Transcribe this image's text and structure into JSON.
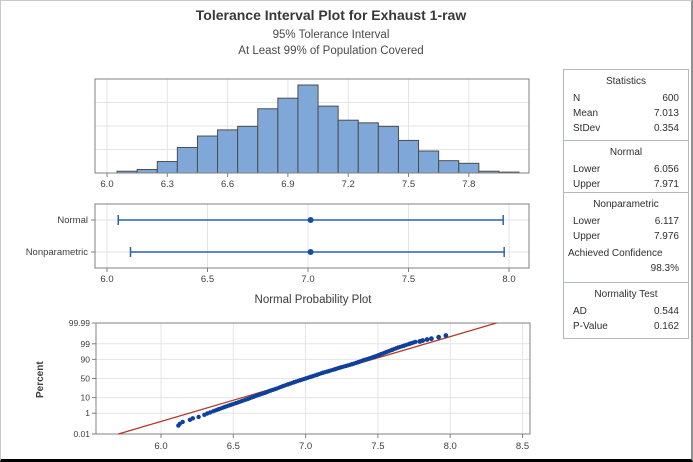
{
  "header": {
    "title": "Tolerance Interval Plot for Exhaust 1-raw",
    "subtitle1": "95% Tolerance Interval",
    "subtitle2": "At Least 99% of Population Covered"
  },
  "colors": {
    "bar_fill": "#7FA8D9",
    "bar_edge": "#4C4C4C",
    "interval_line": "#2B62AE",
    "interval_marker": "#1A4FA0",
    "point_fill": "#0F419B",
    "fit_line": "#AF3A2B",
    "gridline": "#E4E4E4",
    "plot_border": "#808080",
    "tick_text": "#3D3D3D"
  },
  "chart_data": [
    {
      "type": "bar",
      "name": "histogram",
      "bin_width": 0.1,
      "bin_centers": [
        6.1,
        6.2,
        6.3,
        6.4,
        6.5,
        6.6,
        6.7,
        6.8,
        6.9,
        7.0,
        7.1,
        7.2,
        7.3,
        7.4,
        7.5,
        7.6,
        7.7,
        7.8,
        7.9,
        8.0
      ],
      "rel_heights_pct_of_max": [
        2,
        4,
        13,
        29,
        42,
        49,
        53,
        73,
        85,
        100,
        76,
        60,
        57,
        53,
        37,
        25,
        14,
        11,
        2,
        1
      ],
      "x_ticks": [
        6.0,
        6.3,
        6.6,
        6.9,
        7.2,
        7.5,
        7.8
      ],
      "xlim": [
        5.94,
        8.1
      ],
      "grid": true,
      "ylabel": "",
      "xlabel": ""
    },
    {
      "type": "interval",
      "name": "tolerance-intervals",
      "x_ticks": [
        6.0,
        6.5,
        7.0,
        7.5,
        8.0
      ],
      "xlim": [
        5.94,
        8.1
      ],
      "rows": [
        {
          "label": "Normal",
          "lower": 6.056,
          "upper": 7.971,
          "center": 7.013
        },
        {
          "label": "Nonparametric",
          "lower": 6.117,
          "upper": 7.976,
          "center": 7.013
        }
      ]
    },
    {
      "type": "scatter",
      "name": "normal-probability-plot",
      "title": "Normal Probability Plot",
      "ylabel": "Percent",
      "yscale": "probit",
      "y_ticks": [
        0.01,
        1,
        10,
        50,
        90,
        99,
        99.99
      ],
      "x_ticks": [
        6.0,
        6.5,
        7.0,
        7.5,
        8.0,
        8.5
      ],
      "xlim": [
        5.55,
        8.55
      ],
      "fit_line": {
        "x": [
          5.705,
          8.32
        ],
        "percent": [
          0.01,
          99.99
        ]
      },
      "lower_tail_points": [
        [
          6.12,
          0.08
        ],
        [
          6.13,
          0.12
        ],
        [
          6.15,
          0.18
        ],
        [
          6.2,
          0.28
        ],
        [
          6.22,
          0.38
        ],
        [
          6.26,
          0.5
        ],
        [
          6.3,
          0.75
        ],
        [
          6.32,
          0.95
        ],
        [
          6.34,
          1.15
        ]
      ],
      "dense_points": [
        [
          6.36,
          1.4
        ],
        [
          6.4,
          2.0
        ],
        [
          6.44,
          2.8
        ],
        [
          6.48,
          3.8
        ],
        [
          6.52,
          5.0
        ],
        [
          6.56,
          6.6
        ],
        [
          6.6,
          8.5
        ],
        [
          6.64,
          11
        ],
        [
          6.68,
          14
        ],
        [
          6.72,
          17
        ],
        [
          6.76,
          21
        ],
        [
          6.8,
          25
        ],
        [
          6.84,
          30
        ],
        [
          6.88,
          35
        ],
        [
          6.92,
          40
        ],
        [
          6.96,
          45
        ],
        [
          7.0,
          50
        ],
        [
          7.04,
          55
        ],
        [
          7.08,
          60
        ],
        [
          7.12,
          65
        ],
        [
          7.16,
          69
        ],
        [
          7.2,
          73
        ],
        [
          7.24,
          77
        ],
        [
          7.28,
          80
        ],
        [
          7.32,
          83
        ],
        [
          7.36,
          86
        ],
        [
          7.4,
          89
        ],
        [
          7.44,
          91
        ],
        [
          7.48,
          93
        ],
        [
          7.52,
          94.8
        ],
        [
          7.56,
          96.2
        ],
        [
          7.6,
          97.3
        ],
        [
          7.64,
          98.1
        ],
        [
          7.68,
          98.6
        ],
        [
          7.72,
          99.0
        ],
        [
          7.76,
          99.3
        ]
      ],
      "upper_tail_points": [
        [
          7.79,
          99.35
        ],
        [
          7.81,
          99.45
        ],
        [
          7.84,
          99.55
        ],
        [
          7.87,
          99.62
        ],
        [
          7.92,
          99.72
        ],
        [
          7.97,
          99.8
        ]
      ]
    }
  ],
  "stats_panel": {
    "sections": [
      {
        "header": "Statistics",
        "rows": [
          [
            "N",
            "600"
          ],
          [
            "Mean",
            "7.013"
          ],
          [
            "StDev",
            "0.354"
          ]
        ]
      },
      {
        "header": "Normal",
        "rows": [
          [
            "Lower",
            "6.056"
          ],
          [
            "Upper",
            "7.971"
          ]
        ]
      },
      {
        "header": "Nonparametric",
        "rows": [
          [
            "Lower",
            "6.117"
          ],
          [
            "Upper",
            "7.976"
          ]
        ],
        "extra": {
          "label": "Achieved Confidence",
          "value": "98.3%"
        }
      },
      {
        "header": "Normality Test",
        "rows": [
          [
            "AD",
            "0.544"
          ],
          [
            "P-Value",
            "0.162"
          ]
        ]
      }
    ]
  }
}
